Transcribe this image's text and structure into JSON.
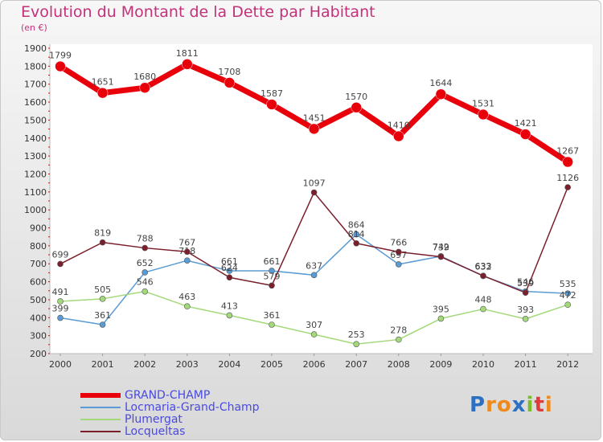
{
  "title": "Evolution du Montant de la Dette par Habitant",
  "subtitle": "(en €)",
  "logo": {
    "letters": [
      "P",
      "r",
      "o",
      "x",
      "i",
      "t",
      "i"
    ],
    "colors": [
      "#2d6fc0",
      "#f08a1c",
      "#f08a1c",
      "#2d6fc0",
      "#7bbd2b",
      "#e03a3a",
      "#f08a1c"
    ]
  },
  "chart_data": {
    "type": "line",
    "x": [
      "2000",
      "2001",
      "2002",
      "2003",
      "2004",
      "2005",
      "2006",
      "2007",
      "2008",
      "2009",
      "2010",
      "2011",
      "2012"
    ],
    "ylim": [
      200,
      1900
    ],
    "yticks": [
      "200",
      "300",
      "400",
      "500",
      "600",
      "700",
      "800",
      "900",
      "1000",
      "1100",
      "1200",
      "1300",
      "1400",
      "1500",
      "1600",
      "1700",
      "1800",
      "1900"
    ],
    "grid": false,
    "legend_position": "bottom-left",
    "series": [
      {
        "name": "Locmaria-Grand-Champ",
        "color": "#5a9bd4",
        "width": 1.5,
        "values": [
          399,
          361,
          652,
          718,
          661,
          661,
          637,
          864,
          697,
          742,
          632,
          546,
          535
        ],
        "labels": [
          "399",
          "361",
          "652",
          "718",
          "661",
          "661",
          "637",
          "864",
          "697",
          "742",
          "632",
          "546",
          "535"
        ]
      },
      {
        "name": "Plumergat",
        "color": "#a3d97a",
        "width": 1.5,
        "values": [
          491,
          505,
          546,
          463,
          413,
          361,
          307,
          253,
          278,
          395,
          448,
          393,
          472
        ],
        "labels": [
          "491",
          "505",
          "546",
          "463",
          "413",
          "361",
          "307",
          "253",
          "278",
          "395",
          "448",
          "393",
          "472"
        ]
      },
      {
        "name": "Locqueltas",
        "color": "#7a1f2b",
        "width": 1.5,
        "values": [
          699,
          819,
          788,
          767,
          624,
          579,
          1097,
          814,
          766,
          739,
          633,
          539,
          1126
        ],
        "labels": [
          "699",
          "819",
          "788",
          "767",
          "624",
          "579",
          "1097",
          "814",
          "766",
          "739",
          "633",
          "539",
          "1126"
        ]
      },
      {
        "name": "GRAND-CHAMP",
        "color": "#e8000b",
        "width": 7,
        "values": [
          1799,
          1651,
          1680,
          1811,
          1708,
          1587,
          1451,
          1570,
          1410,
          1644,
          1531,
          1421,
          1267
        ],
        "labels": [
          "1799",
          "1651",
          "1680",
          "1811",
          "1708",
          "1587",
          "1451",
          "1570",
          "1410",
          "1644",
          "1531",
          "1421",
          "1267"
        ]
      }
    ],
    "legend_order": [
      "GRAND-CHAMP",
      "Locmaria-Grand-Champ",
      "Plumergat",
      "Locqueltas"
    ],
    "legend_text_colors": {
      "GRAND-CHAMP": "#4a4adf",
      "Locmaria-Grand-Champ": "#4a4adf",
      "Plumergat": "#4a4adf",
      "Locqueltas": "#4a4adf"
    }
  }
}
